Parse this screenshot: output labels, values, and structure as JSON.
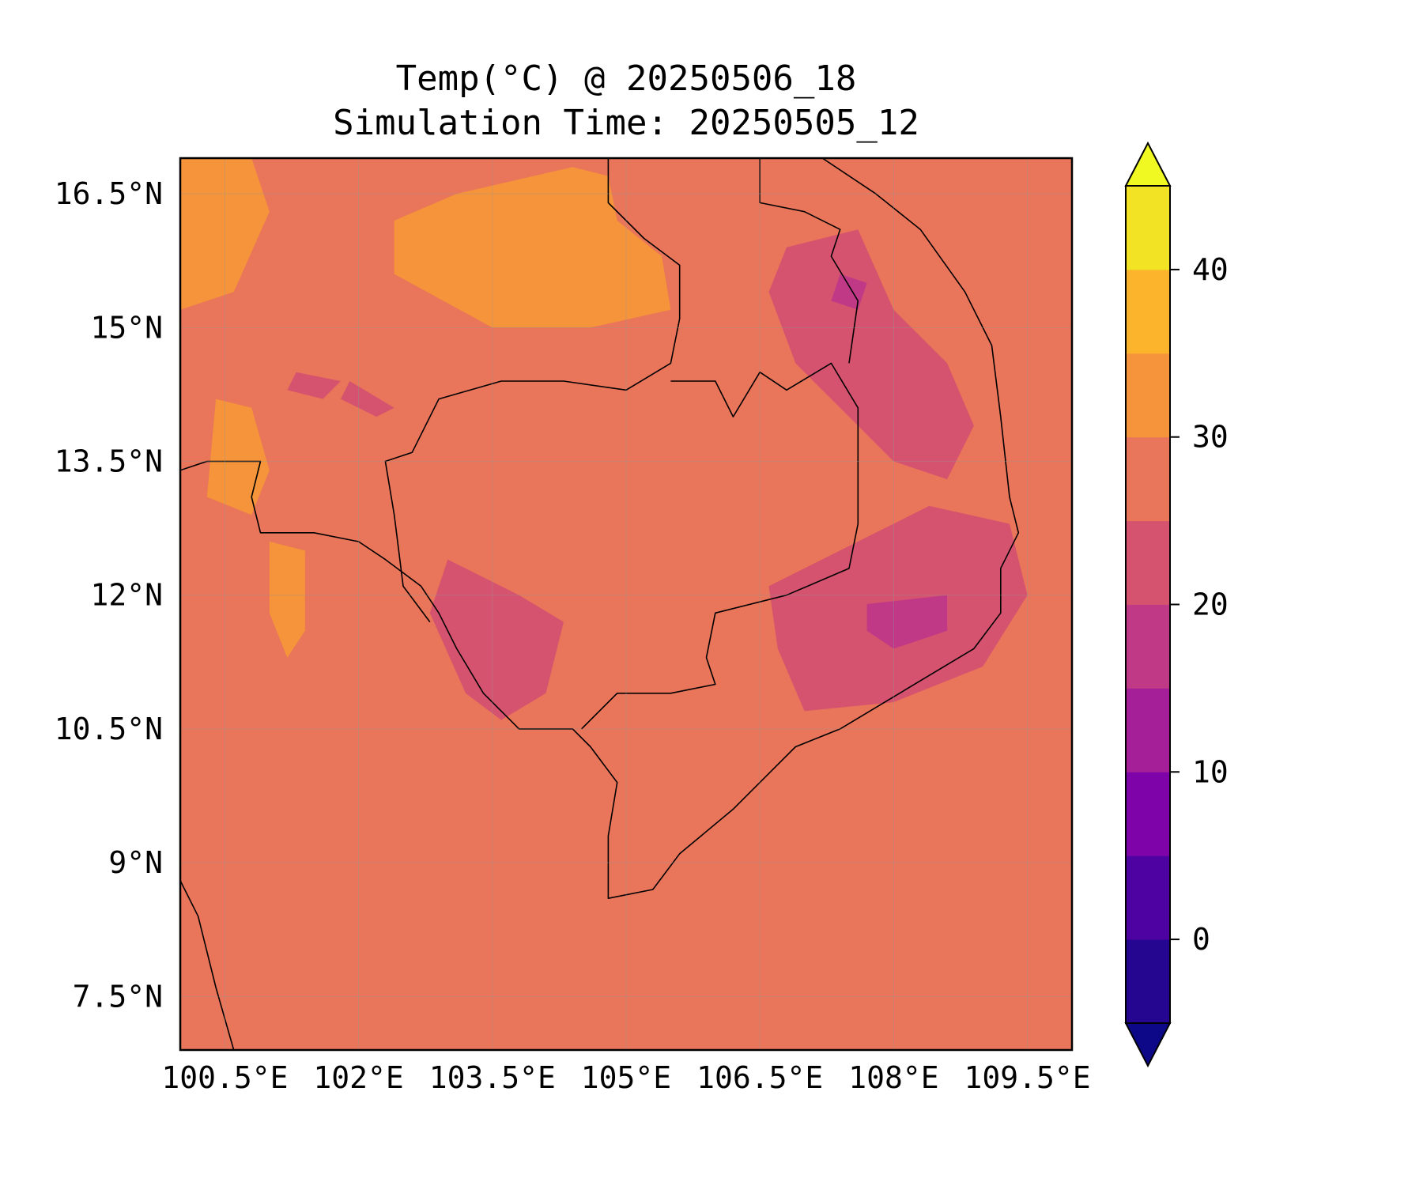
{
  "title": "Temp(°C) @ 20250506_18",
  "subtitle": "Simulation Time: 20250505_12",
  "map": {
    "extent": {
      "lon": [
        100.0,
        110.0
      ],
      "lat": [
        6.9,
        16.9
      ]
    },
    "lon_ticks": [
      {
        "value": 100.5,
        "label": "100.5°E"
      },
      {
        "value": 102.0,
        "label": "102°E"
      },
      {
        "value": 103.5,
        "label": "103.5°E"
      },
      {
        "value": 105.0,
        "label": "105°E"
      },
      {
        "value": 106.5,
        "label": "106.5°E"
      },
      {
        "value": 108.0,
        "label": "108°E"
      },
      {
        "value": 109.5,
        "label": "109.5°E"
      }
    ],
    "lat_ticks": [
      {
        "value": 16.5,
        "label": "16.5°N"
      },
      {
        "value": 15.0,
        "label": "15°N"
      },
      {
        "value": 13.5,
        "label": "13.5°N"
      },
      {
        "value": 12.0,
        "label": "12°N"
      },
      {
        "value": 10.5,
        "label": "10.5°N"
      },
      {
        "value": 9.0,
        "label": "9°N"
      },
      {
        "value": 7.5,
        "label": "7.5°N"
      }
    ],
    "background_color": "#e9755a",
    "border_color": "#000000",
    "gridlines": true
  },
  "colorbar": {
    "min": -5,
    "max": 45,
    "extend": "both",
    "levels": [
      {
        "from": -5,
        "to": 0,
        "color": "#240691"
      },
      {
        "from": 0,
        "to": 5,
        "color": "#4e02a2"
      },
      {
        "from": 5,
        "to": 10,
        "color": "#7e03a8"
      },
      {
        "from": 10,
        "to": 15,
        "color": "#a51f99"
      },
      {
        "from": 15,
        "to": 20,
        "color": "#bf3987"
      },
      {
        "from": 20,
        "to": 25,
        "color": "#d5536f"
      },
      {
        "from": 25,
        "to": 30,
        "color": "#e9755a"
      },
      {
        "from": 30,
        "to": 35,
        "color": "#f5943a"
      },
      {
        "from": 35,
        "to": 40,
        "color": "#fcb42c"
      },
      {
        "from": 40,
        "to": 45,
        "color": "#f2e325"
      }
    ],
    "under_color": "#0d0887",
    "over_color": "#f0f921",
    "ticks": [
      {
        "value": 0,
        "label": "0"
      },
      {
        "value": 10,
        "label": "10"
      },
      {
        "value": 20,
        "label": "20"
      },
      {
        "value": 30,
        "label": "30"
      },
      {
        "value": 40,
        "label": "40"
      }
    ]
  },
  "temperature_regions": [
    {
      "band": "30-35",
      "color": "#f5943a",
      "lonlat": [
        [
          102.4,
          16.2
        ],
        [
          103.1,
          16.5
        ],
        [
          104.4,
          16.8
        ],
        [
          104.8,
          16.7
        ],
        [
          104.9,
          16.2
        ],
        [
          105.4,
          15.8
        ],
        [
          105.5,
          15.2
        ],
        [
          104.6,
          15.0
        ],
        [
          103.5,
          15.0
        ],
        [
          102.4,
          15.6
        ]
      ]
    },
    {
      "band": "30-35",
      "color": "#f5943a",
      "lonlat": [
        [
          100.0,
          16.9
        ],
        [
          100.8,
          16.9
        ],
        [
          101.0,
          16.3
        ],
        [
          100.6,
          15.4
        ],
        [
          100.0,
          15.2
        ]
      ]
    },
    {
      "band": "30-35",
      "color": "#f5943a",
      "lonlat": [
        [
          100.4,
          14.2
        ],
        [
          100.8,
          14.1
        ],
        [
          101.0,
          13.4
        ],
        [
          100.8,
          12.9
        ],
        [
          100.3,
          13.1
        ]
      ]
    },
    {
      "band": "30-35",
      "color": "#f5943a",
      "lonlat": [
        [
          101.0,
          12.6
        ],
        [
          101.4,
          12.5
        ],
        [
          101.4,
          11.6
        ],
        [
          101.2,
          11.3
        ],
        [
          101.0,
          11.8
        ]
      ]
    },
    {
      "band": "20-25",
      "color": "#d5536f",
      "lonlat": [
        [
          106.8,
          15.9
        ],
        [
          107.6,
          16.1
        ],
        [
          108.0,
          15.2
        ],
        [
          108.6,
          14.6
        ],
        [
          108.9,
          13.9
        ],
        [
          108.6,
          13.3
        ],
        [
          108.0,
          13.5
        ],
        [
          107.4,
          14.1
        ],
        [
          106.9,
          14.6
        ],
        [
          106.6,
          15.4
        ]
      ]
    },
    {
      "band": "20-25",
      "color": "#d5536f",
      "lonlat": [
        [
          103.0,
          12.4
        ],
        [
          103.8,
          12.0
        ],
        [
          104.3,
          11.7
        ],
        [
          104.1,
          10.9
        ],
        [
          103.6,
          10.6
        ],
        [
          103.2,
          10.9
        ],
        [
          102.8,
          11.8
        ]
      ]
    },
    {
      "band": "20-25",
      "color": "#d5536f",
      "lonlat": [
        [
          106.6,
          12.1
        ],
        [
          107.4,
          12.5
        ],
        [
          108.4,
          13.0
        ],
        [
          109.3,
          12.8
        ],
        [
          109.5,
          12.0
        ],
        [
          109.0,
          11.2
        ],
        [
          108.0,
          10.8
        ],
        [
          107.0,
          10.7
        ],
        [
          106.7,
          11.4
        ]
      ]
    },
    {
      "band": "15-20",
      "color": "#bf3987",
      "lonlat": [
        [
          107.7,
          11.9
        ],
        [
          108.6,
          12.0
        ],
        [
          108.6,
          11.6
        ],
        [
          108.0,
          11.4
        ],
        [
          107.7,
          11.6
        ]
      ]
    },
    {
      "band": "15-20",
      "color": "#bf3987",
      "lonlat": [
        [
          107.4,
          15.6
        ],
        [
          107.7,
          15.5
        ],
        [
          107.6,
          15.2
        ],
        [
          107.3,
          15.3
        ]
      ]
    },
    {
      "band": "20-25",
      "color": "#d5536f",
      "lonlat": [
        [
          101.3,
          14.5
        ],
        [
          101.8,
          14.4
        ],
        [
          101.6,
          14.2
        ],
        [
          101.2,
          14.3
        ]
      ]
    },
    {
      "band": "20-25",
      "color": "#d5536f",
      "lonlat": [
        [
          101.9,
          14.4
        ],
        [
          102.4,
          14.1
        ],
        [
          102.2,
          14.0
        ],
        [
          101.8,
          14.2
        ]
      ]
    }
  ],
  "coastlines_and_borders": [
    {
      "kind": "border",
      "lonlat": [
        [
          104.8,
          16.9
        ],
        [
          104.8,
          16.4
        ],
        [
          105.2,
          16.0
        ],
        [
          105.6,
          15.7
        ],
        [
          105.6,
          15.1
        ],
        [
          105.5,
          14.6
        ],
        [
          105.0,
          14.3
        ],
        [
          104.3,
          14.4
        ],
        [
          103.6,
          14.4
        ],
        [
          102.9,
          14.2
        ],
        [
          102.6,
          13.6
        ],
        [
          102.3,
          13.5
        ],
        [
          102.4,
          12.9
        ],
        [
          102.5,
          12.1
        ],
        [
          102.8,
          11.7
        ]
      ]
    },
    {
      "kind": "border",
      "lonlat": [
        [
          105.5,
          14.4
        ],
        [
          106.0,
          14.4
        ],
        [
          106.2,
          14.0
        ],
        [
          106.5,
          14.5
        ],
        [
          106.8,
          14.3
        ],
        [
          107.3,
          14.6
        ],
        [
          107.6,
          14.1
        ],
        [
          107.6,
          13.6
        ],
        [
          107.6,
          12.8
        ],
        [
          107.5,
          12.3
        ],
        [
          106.8,
          12.0
        ],
        [
          106.0,
          11.8
        ],
        [
          105.9,
          11.3
        ],
        [
          106.0,
          11.0
        ],
        [
          105.5,
          10.9
        ],
        [
          104.9,
          10.9
        ],
        [
          104.5,
          10.5
        ]
      ]
    },
    {
      "kind": "border",
      "lonlat": [
        [
          106.5,
          16.9
        ],
        [
          106.5,
          16.4
        ],
        [
          107.0,
          16.3
        ],
        [
          107.4,
          16.1
        ],
        [
          107.3,
          15.8
        ],
        [
          107.6,
          15.3
        ],
        [
          107.5,
          14.6
        ]
      ]
    },
    {
      "kind": "coast",
      "lonlat": [
        [
          107.2,
          16.9
        ],
        [
          107.8,
          16.5
        ],
        [
          108.3,
          16.1
        ],
        [
          108.8,
          15.4
        ],
        [
          109.1,
          14.8
        ],
        [
          109.2,
          14.0
        ],
        [
          109.3,
          13.1
        ],
        [
          109.4,
          12.7
        ],
        [
          109.2,
          12.3
        ],
        [
          109.2,
          11.8
        ],
        [
          108.9,
          11.4
        ],
        [
          108.4,
          11.1
        ],
        [
          107.9,
          10.8
        ],
        [
          107.4,
          10.5
        ],
        [
          106.9,
          10.3
        ],
        [
          106.6,
          10.0
        ],
        [
          106.2,
          9.6
        ],
        [
          105.6,
          9.1
        ],
        [
          105.3,
          8.7
        ],
        [
          104.8,
          8.6
        ],
        [
          104.8,
          9.3
        ],
        [
          104.9,
          9.9
        ],
        [
          104.6,
          10.3
        ],
        [
          104.4,
          10.5
        ],
        [
          103.8,
          10.5
        ],
        [
          103.6,
          10.7
        ],
        [
          103.4,
          10.9
        ],
        [
          103.1,
          11.4
        ],
        [
          102.9,
          11.8
        ],
        [
          102.7,
          12.1
        ],
        [
          102.3,
          12.4
        ],
        [
          102.0,
          12.6
        ],
        [
          101.5,
          12.7
        ],
        [
          100.9,
          12.7
        ],
        [
          100.8,
          13.1
        ],
        [
          100.9,
          13.5
        ],
        [
          100.3,
          13.5
        ],
        [
          100.0,
          13.4
        ]
      ]
    },
    {
      "kind": "coast",
      "lonlat": [
        [
          100.0,
          8.8
        ],
        [
          100.2,
          8.4
        ],
        [
          100.4,
          7.6
        ],
        [
          100.6,
          6.9
        ]
      ]
    }
  ]
}
